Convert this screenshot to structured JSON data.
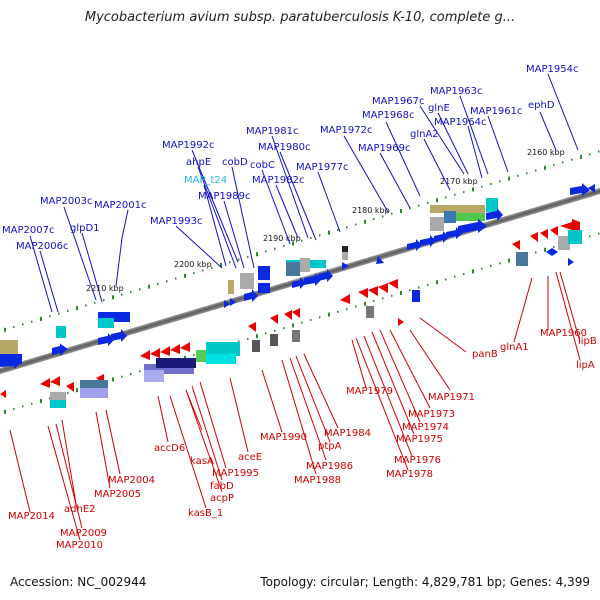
{
  "title": "Mycobacterium avium subsp. paratuberculosis K-10, complete g...",
  "footer": {
    "accession": "Accession: NC_002944",
    "stats": "Topology: circular; Length: 4,829,781 bp; Genes: 4,399"
  },
  "kbp_marks": [
    "2160 kbp",
    "2170 kbp",
    "2180 kbp",
    "2190 kbp",
    "2200 kbp",
    "2210 kbp"
  ],
  "top_labels": [
    "MAP1954c",
    "ephD",
    "MAP1963c",
    "MAP1967c",
    "glnE",
    "MAP1961c",
    "MAP1968c",
    "MAP1964c",
    "glnA2",
    "MAP1972c",
    "MAP1969c",
    "MAP1981c",
    "MAP1980c",
    "MAP1977c",
    "MAP1992c",
    "cobD",
    "ahpE",
    "cobC",
    "MAP1982c",
    "MAP_t24",
    "MAP1989c",
    "MAP2003c",
    "MAP2001c",
    "MAP2007c",
    "glpD1",
    "MAP1993c",
    "MAP2006c"
  ],
  "bottom_labels": [
    "lipB",
    "MAP1960",
    "lipA",
    "glnA1",
    "panB",
    "MAP1971",
    "MAP1973",
    "MAP1979",
    "MAP1974",
    "MAP1975",
    "MAP1976",
    "MAP1978",
    "MAP1984",
    "ptpA",
    "MAP1990",
    "MAP1986",
    "MAP1988",
    "aceE",
    "accD6",
    "kasA",
    "MAP1995",
    "fabD",
    "acpP",
    "kasB_1",
    "MAP2004",
    "MAP2005",
    "adhE2",
    "MAP2014",
    "MAP2009",
    "MAP2010"
  ]
}
